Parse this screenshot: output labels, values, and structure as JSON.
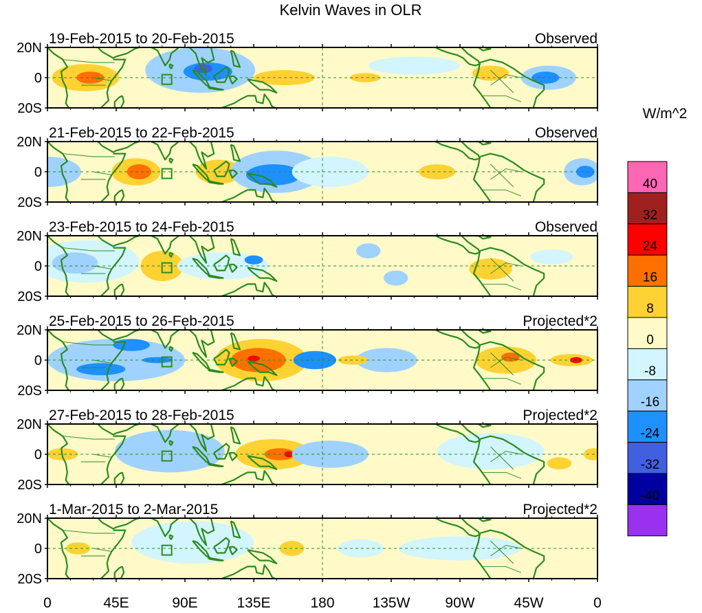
{
  "title": "Kelvin Waves in OLR",
  "units": "W/m^2",
  "colors": {
    "coast": "#2a8a1f",
    "border": "#2a8a1f",
    "frame": "#000000",
    "dash": "#2a8a1f",
    "box": "#2a8a1f"
  },
  "y_ticks": [
    "20N",
    "0",
    "20S"
  ],
  "x_ticks": [
    "0",
    "45E",
    "90E",
    "135E",
    "180",
    "135W",
    "90W",
    "45W",
    "0"
  ],
  "colorbar": {
    "bins": [
      {
        "color": "#ff66b3"
      },
      {
        "color": "#a02020"
      },
      {
        "color": "#ff0000"
      },
      {
        "color": "#ff7000"
      },
      {
        "color": "#ffd233"
      },
      {
        "color": "#fffac8"
      },
      {
        "color": "#d2f5ff"
      },
      {
        "color": "#a0d2ff"
      },
      {
        "color": "#1e90ff"
      },
      {
        "color": "#4060e0"
      },
      {
        "color": "#0000a0"
      },
      {
        "color": "#9a30f0"
      }
    ],
    "labels": [
      "40",
      "32",
      "24",
      "16",
      "8",
      "0",
      "-8",
      "-16",
      "-24",
      "-32",
      "-40"
    ]
  },
  "panels": [
    {
      "date": "19-Feb-2015 to 20-Feb-2015",
      "mode": "Observed",
      "blobs": [
        {
          "lon": 25,
          "lat": 0,
          "rlon": 22,
          "rlat": 9,
          "color": "#ffd233"
        },
        {
          "lon": 28,
          "lat": 0,
          "rlon": 9,
          "rlat": 4,
          "color": "#ff7000"
        },
        {
          "lon": 100,
          "lat": 5,
          "rlon": 36,
          "rlat": 15,
          "color": "#a0d2ff"
        },
        {
          "lon": 105,
          "lat": 4,
          "rlon": 16,
          "rlat": 6,
          "color": "#1e90ff"
        },
        {
          "lon": 102,
          "lat": 6,
          "rlon": 6,
          "rlat": 3,
          "color": "#4060e0"
        },
        {
          "lon": 155,
          "lat": 0,
          "rlon": 20,
          "rlat": 5,
          "color": "#ffd233"
        },
        {
          "lon": 208,
          "lat": 0,
          "rlon": 10,
          "rlat": 3,
          "color": "#ffd233"
        },
        {
          "lon": 290,
          "lat": 3,
          "rlon": 12,
          "rlat": 5,
          "color": "#ffd233"
        },
        {
          "lon": 328,
          "lat": 0,
          "rlon": 18,
          "rlat": 8,
          "color": "#a0d2ff"
        },
        {
          "lon": 326,
          "lat": 0,
          "rlon": 9,
          "rlat": 4,
          "color": "#1e90ff"
        },
        {
          "lon": 240,
          "lat": 8,
          "rlon": 30,
          "rlat": 6,
          "color": "#d2f5ff"
        }
      ]
    },
    {
      "date": "21-Feb-2015 to 22-Feb-2015",
      "mode": "Observed",
      "blobs": [
        {
          "lon": 0,
          "lat": 0,
          "rlon": 22,
          "rlat": 10,
          "color": "#a0d2ff"
        },
        {
          "lon": 58,
          "lat": 0,
          "rlon": 16,
          "rlat": 9,
          "color": "#ffd233"
        },
        {
          "lon": 60,
          "lat": 0,
          "rlon": 8,
          "rlat": 5,
          "color": "#ff7000"
        },
        {
          "lon": 112,
          "lat": 0,
          "rlon": 15,
          "rlat": 8,
          "color": "#ffd233"
        },
        {
          "lon": 150,
          "lat": 0,
          "rlon": 30,
          "rlat": 14,
          "color": "#a0d2ff"
        },
        {
          "lon": 148,
          "lat": -2,
          "rlon": 18,
          "rlat": 7,
          "color": "#1e90ff"
        },
        {
          "lon": 185,
          "lat": 0,
          "rlon": 25,
          "rlat": 10,
          "color": "#d2f5ff"
        },
        {
          "lon": 255,
          "lat": 0,
          "rlon": 12,
          "rlat": 5,
          "color": "#ffd233"
        },
        {
          "lon": 350,
          "lat": 0,
          "rlon": 12,
          "rlat": 9,
          "color": "#a0d2ff"
        },
        {
          "lon": 352,
          "lat": 0,
          "rlon": 6,
          "rlat": 4,
          "color": "#1e90ff"
        }
      ]
    },
    {
      "date": "23-Feb-2015 to 24-Feb-2015",
      "mode": "Observed",
      "blobs": [
        {
          "lon": 25,
          "lat": 3,
          "rlon": 35,
          "rlat": 14,
          "color": "#d2f5ff"
        },
        {
          "lon": 18,
          "lat": 2,
          "rlon": 15,
          "rlat": 7,
          "color": "#a0d2ff"
        },
        {
          "lon": 75,
          "lat": 0,
          "rlon": 14,
          "rlat": 10,
          "color": "#ffd233"
        },
        {
          "lon": 115,
          "lat": 0,
          "rlon": 30,
          "rlat": 9,
          "color": "#d2f5ff"
        },
        {
          "lon": 135,
          "lat": 4,
          "rlon": 6,
          "rlat": 3,
          "color": "#1e90ff"
        },
        {
          "lon": 210,
          "lat": 10,
          "rlon": 8,
          "rlat": 5,
          "color": "#a0d2ff"
        },
        {
          "lon": 228,
          "lat": -8,
          "rlon": 8,
          "rlat": 5,
          "color": "#a0d2ff"
        },
        {
          "lon": 290,
          "lat": -2,
          "rlon": 14,
          "rlat": 7,
          "color": "#ffd233"
        },
        {
          "lon": 330,
          "lat": 6,
          "rlon": 14,
          "rlat": 5,
          "color": "#d2f5ff"
        }
      ]
    },
    {
      "date": "25-Feb-2015 to 26-Feb-2015",
      "mode": "Projected*2",
      "blobs": [
        {
          "lon": 45,
          "lat": 0,
          "rlon": 45,
          "rlat": 14,
          "color": "#a0d2ff"
        },
        {
          "lon": 35,
          "lat": -6,
          "rlon": 16,
          "rlat": 4,
          "color": "#1e90ff"
        },
        {
          "lon": 55,
          "lat": 10,
          "rlon": 12,
          "rlat": 4,
          "color": "#1e90ff"
        },
        {
          "lon": 72,
          "lat": 0,
          "rlon": 10,
          "rlat": 2,
          "color": "#1e90ff"
        },
        {
          "lon": 140,
          "lat": 0,
          "rlon": 30,
          "rlat": 14,
          "color": "#ffd233"
        },
        {
          "lon": 138,
          "lat": 0,
          "rlon": 18,
          "rlat": 8,
          "color": "#ff7000"
        },
        {
          "lon": 135,
          "lat": 1,
          "rlon": 4,
          "rlat": 2,
          "color": "#ff0000"
        },
        {
          "lon": 175,
          "lat": 0,
          "rlon": 14,
          "rlat": 6,
          "color": "#1e90ff"
        },
        {
          "lon": 222,
          "lat": 0,
          "rlon": 20,
          "rlat": 8,
          "color": "#a0d2ff"
        },
        {
          "lon": 200,
          "lat": 0,
          "rlon": 10,
          "rlat": 3,
          "color": "#ffd233"
        },
        {
          "lon": 300,
          "lat": 0,
          "rlon": 20,
          "rlat": 9,
          "color": "#ffd233"
        },
        {
          "lon": 303,
          "lat": 2,
          "rlon": 6,
          "rlat": 3,
          "color": "#ff7000"
        },
        {
          "lon": 343,
          "lat": 0,
          "rlon": 14,
          "rlat": 4,
          "color": "#ffd233"
        },
        {
          "lon": 346,
          "lat": 0,
          "rlon": 4,
          "rlat": 2,
          "color": "#ff0000"
        }
      ]
    },
    {
      "date": "27-Feb-2015 to 28-Feb-2015",
      "mode": "Projected*2",
      "blobs": [
        {
          "lon": 80,
          "lat": 2,
          "rlon": 36,
          "rlat": 14,
          "color": "#a0d2ff"
        },
        {
          "lon": 148,
          "lat": 0,
          "rlon": 25,
          "rlat": 10,
          "color": "#ffd233"
        },
        {
          "lon": 152,
          "lat": 0,
          "rlon": 10,
          "rlat": 4,
          "color": "#ff7000"
        },
        {
          "lon": 158,
          "lat": 0,
          "rlon": 3,
          "rlat": 2,
          "color": "#ff0000"
        },
        {
          "lon": 185,
          "lat": 0,
          "rlon": 25,
          "rlat": 9,
          "color": "#a0d2ff"
        },
        {
          "lon": 10,
          "lat": 0,
          "rlon": 10,
          "rlat": 4,
          "color": "#ffd233"
        },
        {
          "lon": 290,
          "lat": 2,
          "rlon": 35,
          "rlat": 12,
          "color": "#d2f5ff"
        },
        {
          "lon": 335,
          "lat": -6,
          "rlon": 8,
          "rlat": 4,
          "color": "#ffd233"
        },
        {
          "lon": 357,
          "lat": 0,
          "rlon": 6,
          "rlat": 4,
          "color": "#ffd233"
        }
      ]
    },
    {
      "date": "1-Mar-2015 to 2-Mar-2015",
      "mode": "Projected*2",
      "blobs": [
        {
          "lon": 20,
          "lat": 0,
          "rlon": 8,
          "rlat": 4,
          "color": "#ffd233"
        },
        {
          "lon": 95,
          "lat": 4,
          "rlon": 40,
          "rlat": 14,
          "color": "#d2f5ff"
        },
        {
          "lon": 160,
          "lat": 0,
          "rlon": 8,
          "rlat": 5,
          "color": "#ffd233"
        },
        {
          "lon": 205,
          "lat": 0,
          "rlon": 15,
          "rlat": 6,
          "color": "#d2f5ff"
        },
        {
          "lon": 270,
          "lat": 0,
          "rlon": 40,
          "rlat": 8,
          "color": "#d2f5ff"
        }
      ]
    }
  ]
}
